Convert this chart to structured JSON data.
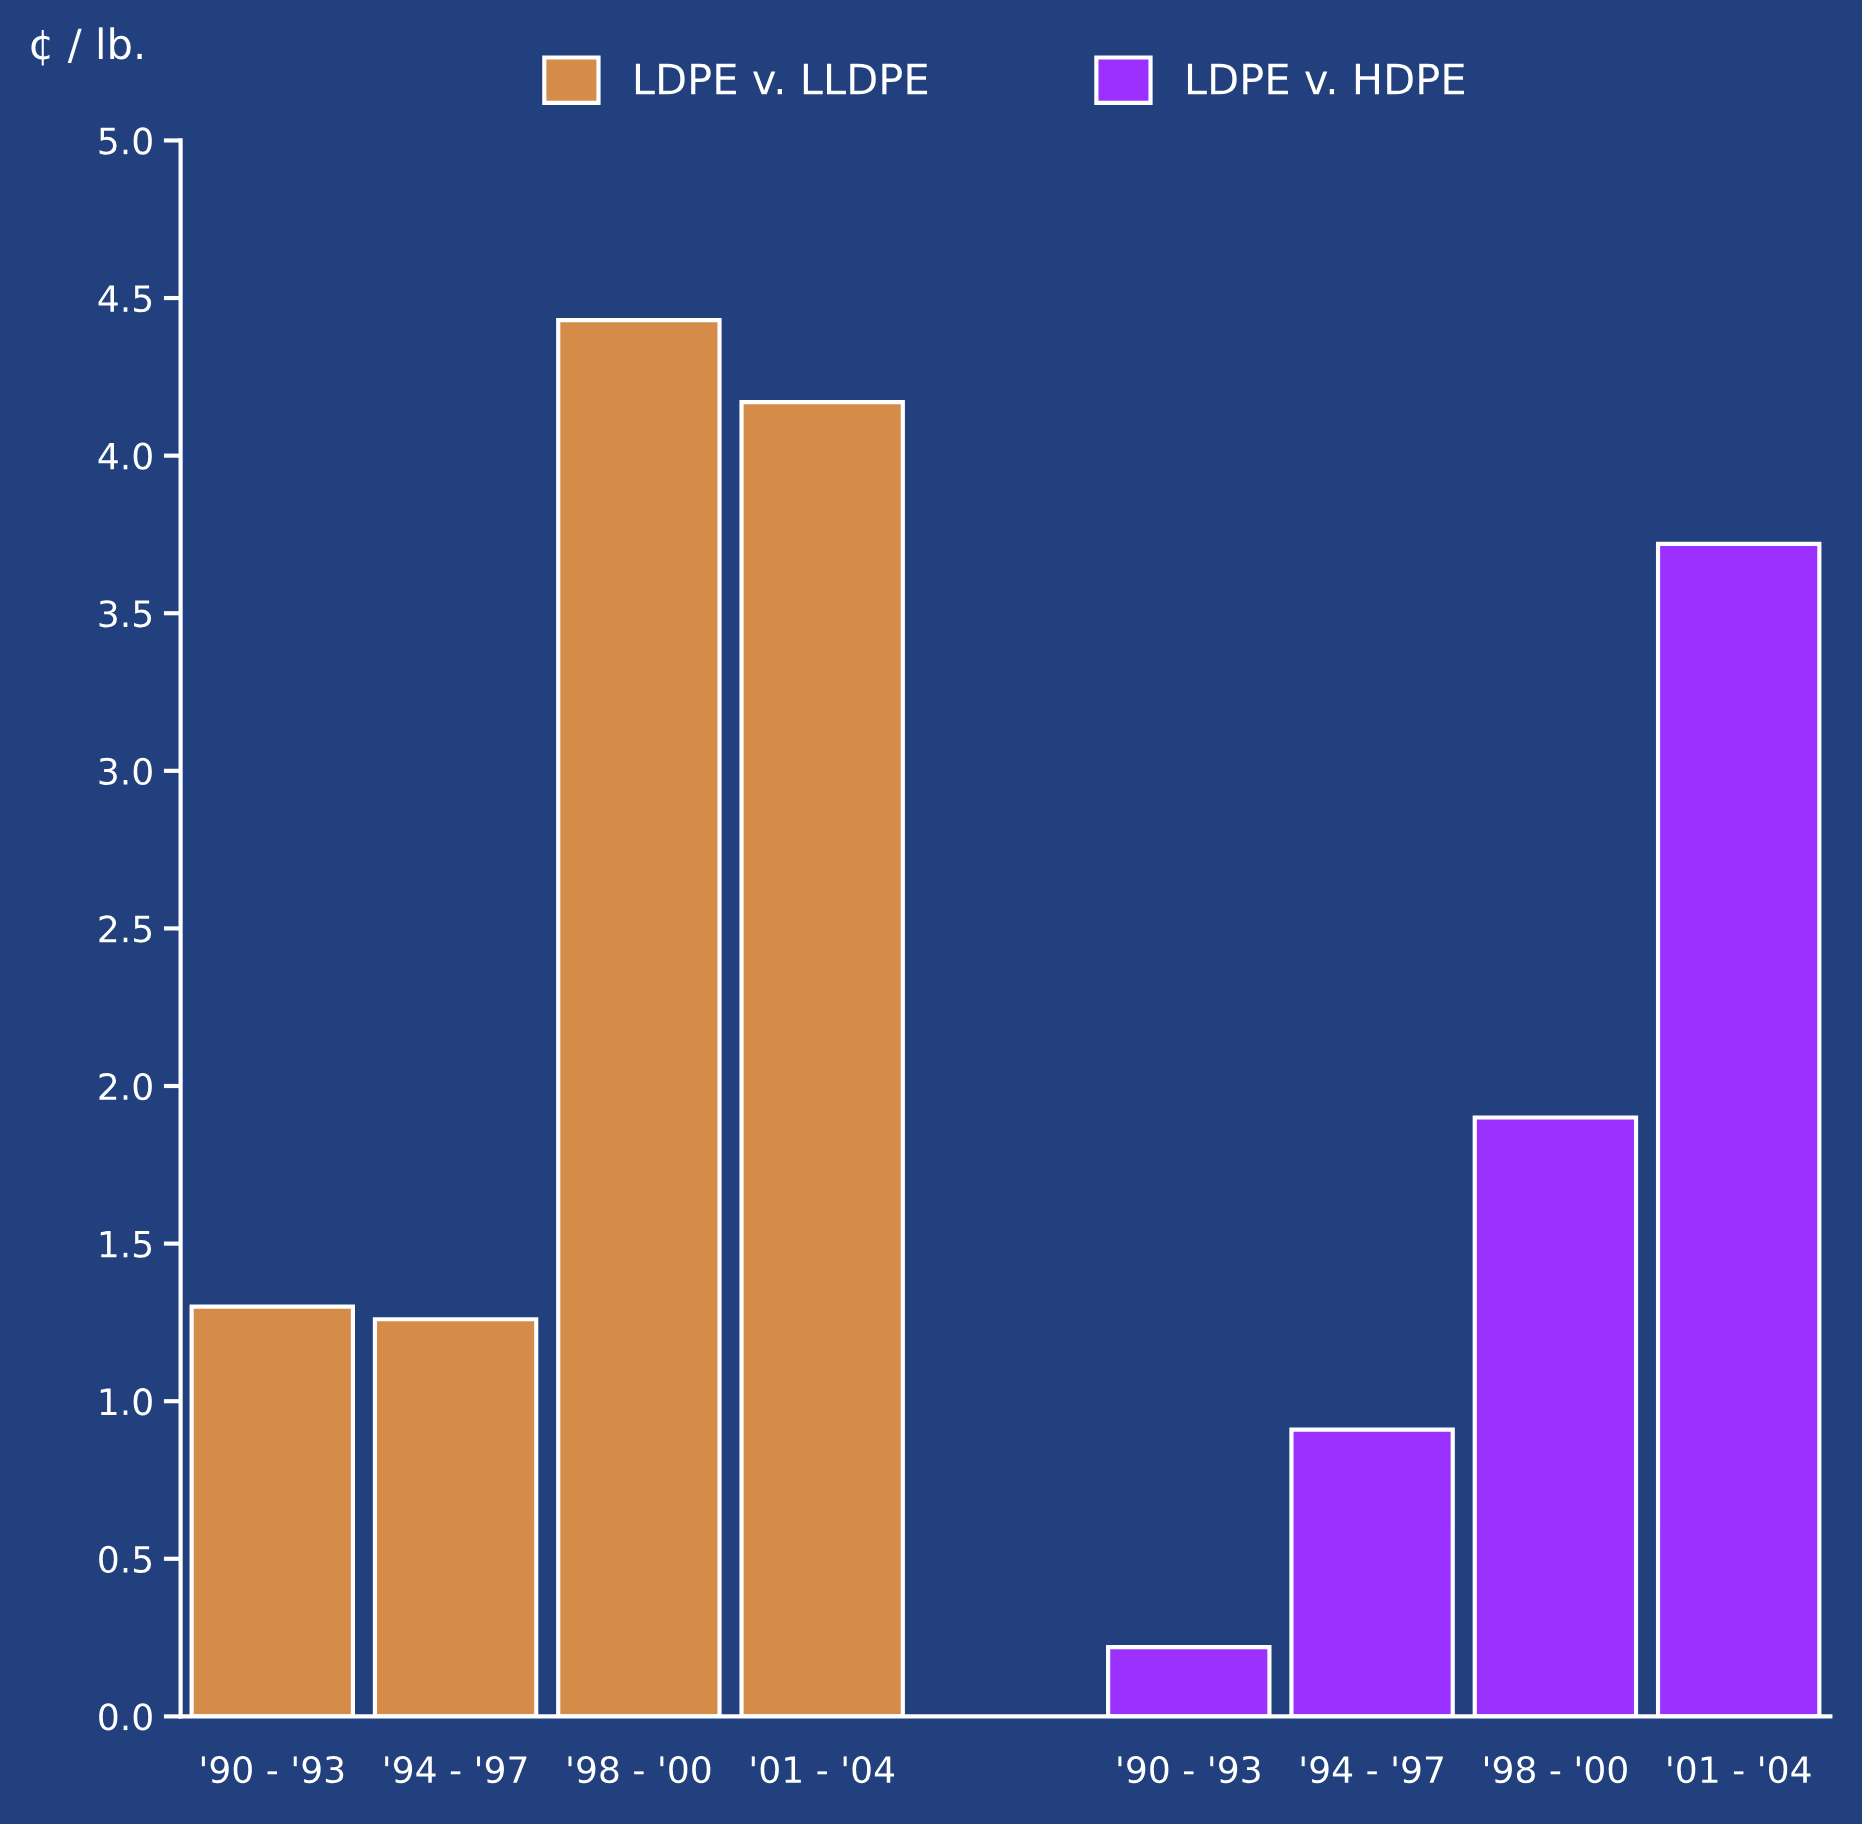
{
  "chart_data": {
    "type": "bar",
    "ylabel": "¢ / lb.",
    "categories": [
      "'90 - '93",
      "'94 - '97",
      "'98 - '00",
      "'01 - '04",
      null,
      "'90 - '93",
      "'94 - '97",
      "'98 - '00",
      "'01 - '04"
    ],
    "series": [
      {
        "name": "LDPE v. LLDPE",
        "color": "#d48c48",
        "values": [
          1.3,
          1.26,
          4.43,
          4.17,
          null,
          null,
          null,
          null,
          null
        ]
      },
      {
        "name": "LDPE v. HDPE",
        "color": "#9b30ff",
        "values": [
          null,
          null,
          null,
          null,
          null,
          0.22,
          0.91,
          1.9,
          3.72
        ]
      }
    ],
    "ylim": [
      0,
      5
    ],
    "yticks": [
      {
        "value": 0,
        "label": "0.0"
      },
      0.5,
      {
        "value": 1,
        "label": "1.0"
      },
      1.5,
      {
        "value": 2,
        "label": "2.0"
      },
      2.5,
      {
        "value": 3,
        "label": "3.0"
      },
      3.5,
      {
        "value": 4,
        "label": "4.0"
      },
      4.5,
      {
        "value": 5,
        "label": "5.0"
      }
    ],
    "grid": false,
    "legend": "top"
  }
}
